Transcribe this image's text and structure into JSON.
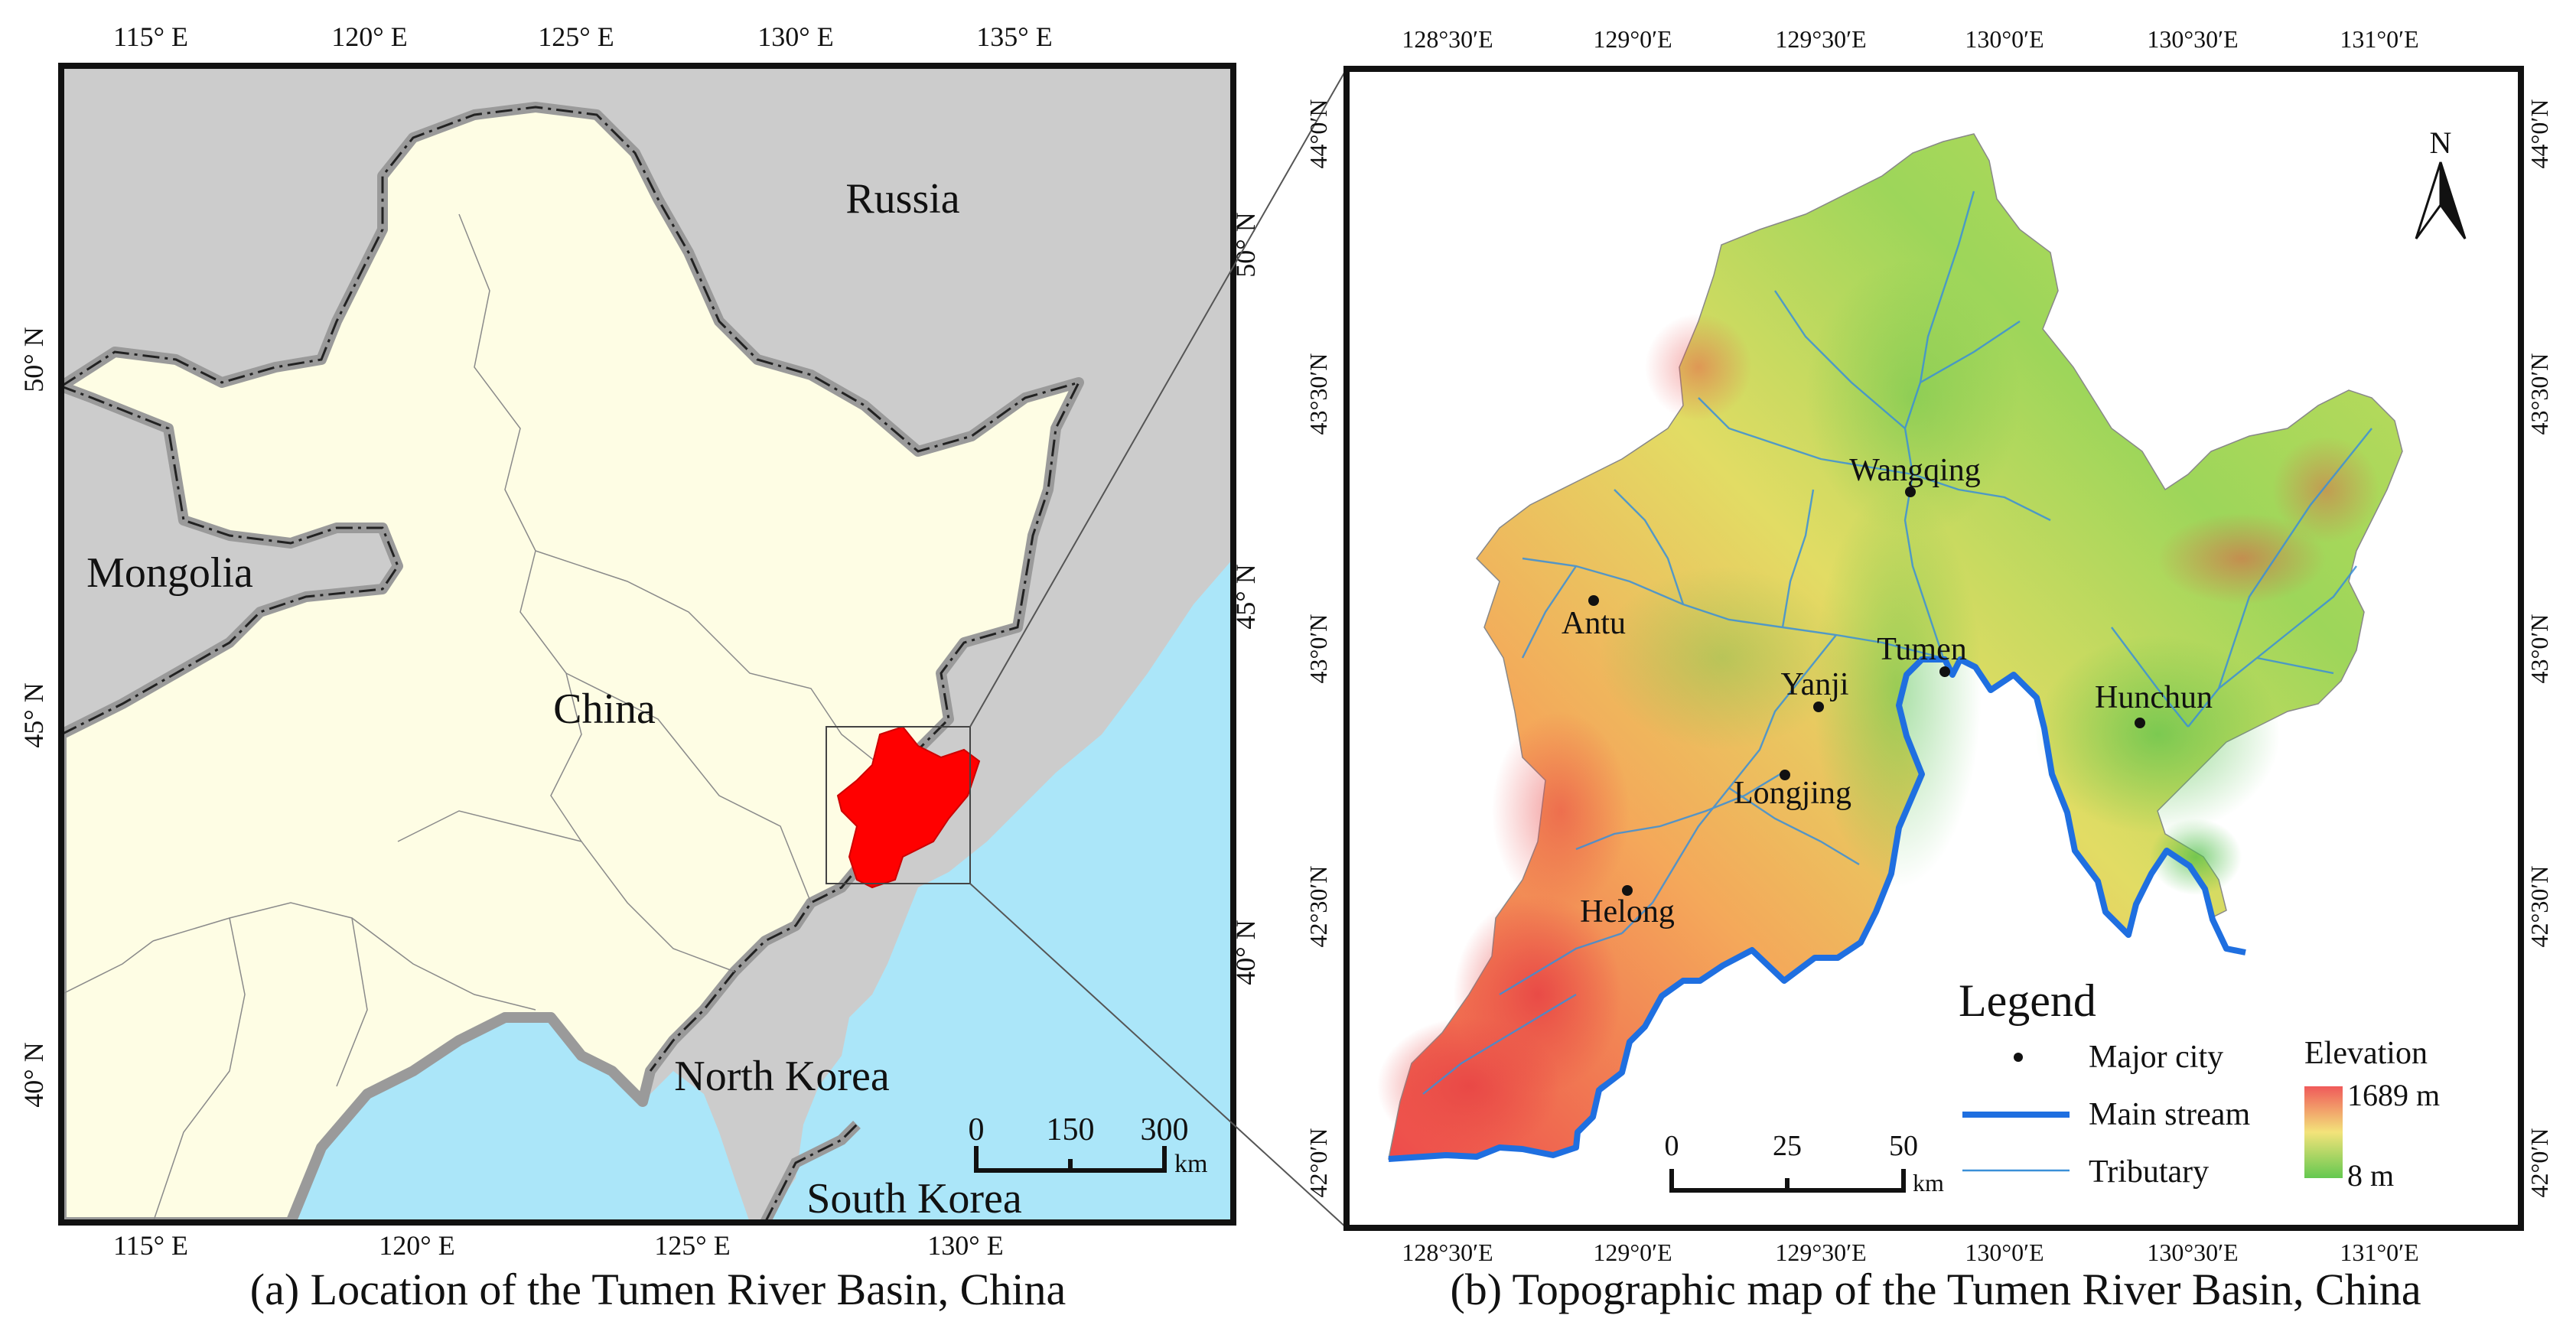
{
  "panel_a": {
    "caption": "(a) Location of the Tumen River Basin, China",
    "lon_ticks_top": [
      "115° E",
      "120° E",
      "125° E",
      "130° E",
      "135° E"
    ],
    "lon_ticks_bottom": [
      "115° E",
      "120° E",
      "125° E",
      "130° E"
    ],
    "lat_ticks_left": [
      "50° N",
      "45° N",
      "40° N"
    ],
    "lat_ticks_right": [
      "50° N",
      "45° N",
      "40° N"
    ],
    "labels": {
      "russia": "Russia",
      "mongolia": "Mongolia",
      "china": "China",
      "north_korea": "North Korea",
      "south_korea": "South Korea"
    },
    "scalebar": {
      "ticks": [
        "0",
        "150",
        "300"
      ],
      "unit": "km"
    },
    "colors": {
      "china": "#fefde4",
      "neighbors": "#cccccc",
      "sea": "#abe6f9",
      "basin": "#ff0000",
      "border_halo": "#9a9a9a"
    }
  },
  "panel_b": {
    "caption": "(b) Topographic map of the Tumen River Basin, China",
    "lon_ticks_top": [
      "128°30′E",
      "129°0′E",
      "129°30′E",
      "130°0′E",
      "130°30′E",
      "131°0′E"
    ],
    "lon_ticks_bottom": [
      "128°30′E",
      "129°0′E",
      "129°30′E",
      "130°0′E",
      "130°30′E",
      "131°0′E"
    ],
    "lat_ticks_left": [
      "44°0′N",
      "43°30′N",
      "43°0′N",
      "42°30′N",
      "42°0′N"
    ],
    "lat_ticks_right": [
      "44°0′N",
      "43°30′N",
      "43°0′N",
      "42°30′N",
      "42°0′N"
    ],
    "north_arrow": "N",
    "cities": [
      {
        "name": "Wangqing"
      },
      {
        "name": "Antu"
      },
      {
        "name": "Tumen"
      },
      {
        "name": "Yanji"
      },
      {
        "name": "Hunchun"
      },
      {
        "name": "Longjing"
      },
      {
        "name": "Helong"
      }
    ],
    "legend": {
      "title": "Legend",
      "city_label": "Major city",
      "main_stream_label": "Main stream",
      "tributary_label": "Tributary",
      "elevation_title": "Elevation",
      "elevation_max": "1689 m",
      "elevation_min": "8 m"
    },
    "scalebar": {
      "ticks": [
        "0",
        "25",
        "50"
      ],
      "unit": "km"
    },
    "colors": {
      "main_stream": "#1f6fe0",
      "tributary": "#3a8fd8",
      "elev_high": "#f06060",
      "elev_mid": "#f2e070",
      "elev_low": "#6cc850"
    }
  }
}
